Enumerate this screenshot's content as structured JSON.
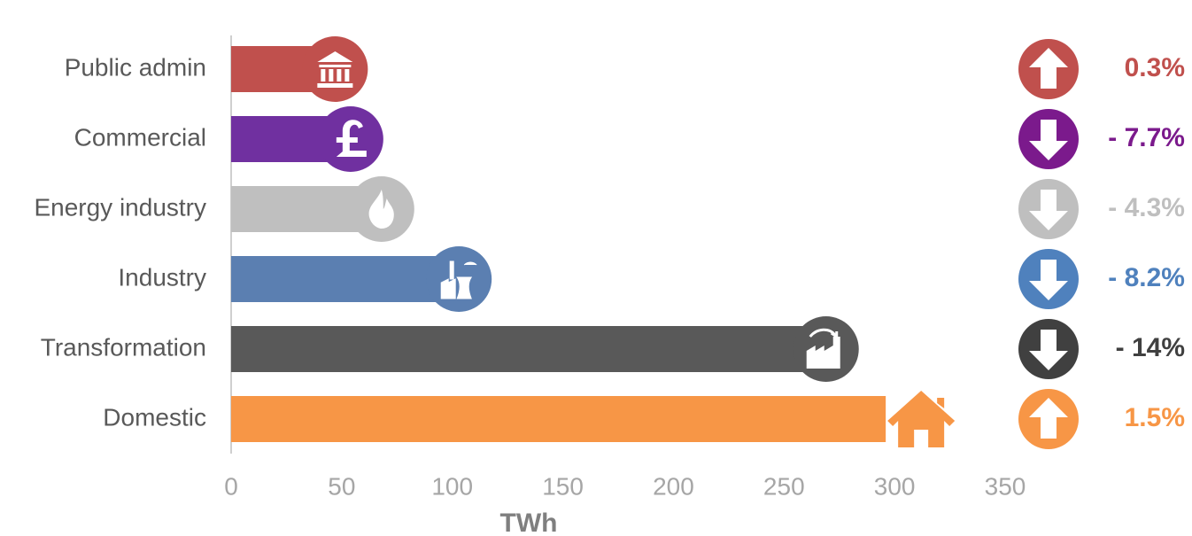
{
  "chart_data": {
    "type": "bar",
    "orientation": "horizontal",
    "categories": [
      "Public admin",
      "Commercial",
      "Energy industry",
      "Industry",
      "Transformation",
      "Domestic"
    ],
    "values": [
      47,
      54,
      68,
      103,
      269,
      296
    ],
    "colors": [
      "#c0504d",
      "#7030a0",
      "#bfbfbf",
      "#5b7fb1",
      "#595959",
      "#f79646"
    ],
    "changes": [
      0.3,
      -7.7,
      -4.3,
      -8.2,
      -14,
      1.5
    ],
    "change_labels": [
      "0.3%",
      "- 7.7%",
      "- 4.3%",
      "- 8.2%",
      "- 14%",
      "1.5%"
    ],
    "change_colors": [
      "#c0504d",
      "#7b1a8c",
      "#bfbfbf",
      "#4f81bd",
      "#404040",
      "#f79646"
    ],
    "xlabel": "TWh",
    "xlim": [
      0,
      350
    ],
    "xticks": [
      0,
      50,
      100,
      150,
      200,
      250,
      300,
      350
    ],
    "grid": false
  }
}
